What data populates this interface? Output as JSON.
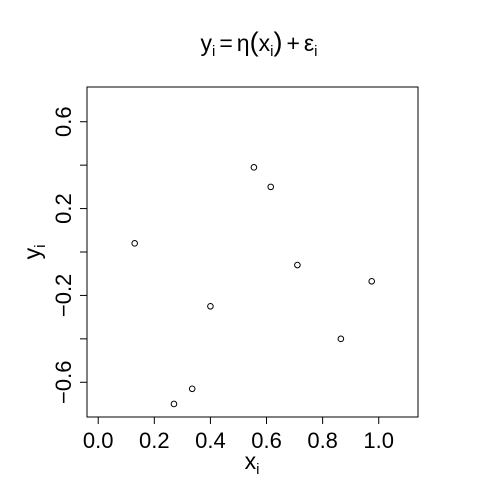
{
  "chart_data": {
    "type": "scatter",
    "title": {
      "y": "y",
      "y_sub": "i",
      "eq": "=",
      "eta": "η",
      "open": "(",
      "x": "x",
      "x_sub": "i",
      "close": ")",
      "plus": "+",
      "eps": "ε",
      "eps_sub": "i"
    },
    "xlabel": {
      "main": "x",
      "sub": "i"
    },
    "ylabel": {
      "main": "y",
      "sub": "i"
    },
    "xlim": [
      -0.04,
      1.14
    ],
    "ylim": [
      -0.76,
      0.76
    ],
    "x_ticks": [
      0.0,
      0.2,
      0.4,
      0.6,
      0.8,
      1.0
    ],
    "x_tick_labels": [
      "0.0",
      "0.2",
      "0.4",
      "0.6",
      "0.8",
      "1.0"
    ],
    "y_ticks": [
      -0.6,
      -0.4,
      -0.2,
      0.0,
      0.2,
      0.4,
      0.6
    ],
    "y_tick_labels": [
      "−0.6",
      "",
      "−0.2",
      "",
      "0.2",
      "",
      "0.6"
    ],
    "grid": false,
    "legend": "none",
    "marker": "open-circle",
    "points": [
      {
        "x": 0.13,
        "y": 0.04
      },
      {
        "x": 0.27,
        "y": -0.7
      },
      {
        "x": 0.335,
        "y": -0.63
      },
      {
        "x": 0.4,
        "y": -0.25
      },
      {
        "x": 0.555,
        "y": 0.39
      },
      {
        "x": 0.615,
        "y": 0.3
      },
      {
        "x": 0.71,
        "y": -0.06
      },
      {
        "x": 0.865,
        "y": -0.4
      },
      {
        "x": 0.975,
        "y": -0.135
      }
    ]
  }
}
